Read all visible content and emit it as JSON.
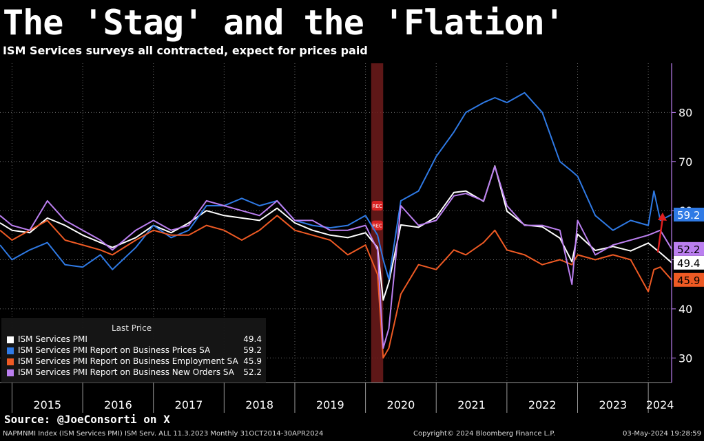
{
  "header": {
    "title": "The 'Stag' and the 'Flation'",
    "subtitle": "ISM Services surveys all contracted, expect for prices paid"
  },
  "legend": {
    "heading": "Last Price",
    "items": [
      {
        "name": "ISM Services PMI",
        "value": "49.4",
        "color": "#ffffff"
      },
      {
        "name": "ISM Services PMI Report on Business Prices SA",
        "value": "59.2",
        "color": "#2f7ae5"
      },
      {
        "name": "ISM Services PMI Report on Business Employment SA",
        "value": "45.9",
        "color": "#ee5a24"
      },
      {
        "name": "ISM Services PMI Report on Business New Orders SA",
        "value": "52.2",
        "color": "#bb7ff0"
      }
    ]
  },
  "recession_marker": "REC",
  "source": "Source: @JoeConsorti on X",
  "footer": {
    "left": "NAPMNMI Index (ISM Services PMI) ISM Serv. ALL 11.3.2023  Monthly 31OCT2014-30APR2024",
    "center": "Copyright© 2024 Bloomberg Finance L.P.",
    "right": "03-May-2024 19:28:59"
  },
  "chart_data": {
    "type": "line",
    "xlabel": "",
    "ylabel": "",
    "x_range": [
      2014.83,
      2024.33
    ],
    "ylim": [
      25,
      90
    ],
    "y_ticks": [
      30,
      40,
      50,
      60,
      70,
      80
    ],
    "x_ticks": [
      "2015",
      "2016",
      "2017",
      "2018",
      "2019",
      "2020",
      "2021",
      "2022",
      "2023",
      "2024"
    ],
    "recession": [
      2020.08,
      2020.25
    ],
    "grid": true,
    "legend_position": "bottom-left",
    "series": [
      {
        "name": "ISM Services PMI",
        "last": "49.4",
        "color": "#ffffff",
        "points": [
          [
            2014.83,
            57.5
          ],
          [
            2015.0,
            56.0
          ],
          [
            2015.25,
            55.5
          ],
          [
            2015.5,
            58.5
          ],
          [
            2015.75,
            57.0
          ],
          [
            2016.0,
            55.0
          ],
          [
            2016.25,
            53.5
          ],
          [
            2016.42,
            52.5
          ],
          [
            2016.75,
            54.5
          ],
          [
            2017.0,
            57.0
          ],
          [
            2017.25,
            55.5
          ],
          [
            2017.5,
            57.5
          ],
          [
            2017.75,
            60.0
          ],
          [
            2018.0,
            59.0
          ],
          [
            2018.25,
            58.5
          ],
          [
            2018.5,
            58.0
          ],
          [
            2018.75,
            60.5
          ],
          [
            2019.0,
            57.5
          ],
          [
            2019.25,
            56.0
          ],
          [
            2019.5,
            55.0
          ],
          [
            2019.75,
            54.5
          ],
          [
            2020.0,
            55.5
          ],
          [
            2020.17,
            52.5
          ],
          [
            2020.25,
            41.8
          ],
          [
            2020.33,
            45.4
          ],
          [
            2020.5,
            57.1
          ],
          [
            2020.75,
            56.6
          ],
          [
            2021.0,
            58.7
          ],
          [
            2021.25,
            63.7
          ],
          [
            2021.42,
            64.0
          ],
          [
            2021.67,
            61.9
          ],
          [
            2021.83,
            69.1
          ],
          [
            2022.0,
            59.9
          ],
          [
            2022.25,
            57.1
          ],
          [
            2022.5,
            56.7
          ],
          [
            2022.75,
            54.4
          ],
          [
            2022.92,
            49.6
          ],
          [
            2023.0,
            55.2
          ],
          [
            2023.25,
            51.9
          ],
          [
            2023.5,
            52.7
          ],
          [
            2023.75,
            51.8
          ],
          [
            2024.0,
            53.4
          ],
          [
            2024.17,
            51.4
          ],
          [
            2024.33,
            49.4
          ]
        ]
      },
      {
        "name": "ISM Services PMI Report on Business Prices SA",
        "last": "59.2",
        "color": "#2f7ae5",
        "points": [
          [
            2014.83,
            53.0
          ],
          [
            2015.0,
            50.0
          ],
          [
            2015.25,
            52.0
          ],
          [
            2015.5,
            53.5
          ],
          [
            2015.75,
            49.0
          ],
          [
            2016.0,
            48.5
          ],
          [
            2016.25,
            51.0
          ],
          [
            2016.42,
            48.0
          ],
          [
            2016.75,
            52.5
          ],
          [
            2017.0,
            57.0
          ],
          [
            2017.25,
            54.5
          ],
          [
            2017.5,
            56.0
          ],
          [
            2017.75,
            61.0
          ],
          [
            2018.0,
            61.0
          ],
          [
            2018.25,
            62.5
          ],
          [
            2018.5,
            61.0
          ],
          [
            2018.75,
            62.0
          ],
          [
            2019.0,
            58.0
          ],
          [
            2019.25,
            57.0
          ],
          [
            2019.5,
            56.5
          ],
          [
            2019.75,
            57.0
          ],
          [
            2020.0,
            59.0
          ],
          [
            2020.17,
            55.0
          ],
          [
            2020.25,
            50.0
          ],
          [
            2020.33,
            46.0
          ],
          [
            2020.5,
            62.0
          ],
          [
            2020.75,
            64.0
          ],
          [
            2021.0,
            71.0
          ],
          [
            2021.25,
            76.0
          ],
          [
            2021.42,
            80.0
          ],
          [
            2021.67,
            82.0
          ],
          [
            2021.83,
            83.0
          ],
          [
            2022.0,
            82.0
          ],
          [
            2022.25,
            84.0
          ],
          [
            2022.5,
            80.0
          ],
          [
            2022.75,
            70.0
          ],
          [
            2022.92,
            68.0
          ],
          [
            2023.0,
            67.0
          ],
          [
            2023.25,
            59.0
          ],
          [
            2023.5,
            56.0
          ],
          [
            2023.75,
            58.0
          ],
          [
            2024.0,
            57.0
          ],
          [
            2024.08,
            64.0
          ],
          [
            2024.17,
            58.0
          ],
          [
            2024.33,
            59.2
          ]
        ]
      },
      {
        "name": "ISM Services PMI Report on Business Employment SA",
        "last": "45.9",
        "color": "#ee5a24",
        "points": [
          [
            2014.83,
            56.0
          ],
          [
            2015.0,
            54.0
          ],
          [
            2015.25,
            56.0
          ],
          [
            2015.5,
            58.0
          ],
          [
            2015.75,
            54.0
          ],
          [
            2016.0,
            53.0
          ],
          [
            2016.25,
            52.0
          ],
          [
            2016.42,
            51.0
          ],
          [
            2016.75,
            54.0
          ],
          [
            2017.0,
            56.0
          ],
          [
            2017.25,
            55.0
          ],
          [
            2017.5,
            55.0
          ],
          [
            2017.75,
            57.0
          ],
          [
            2018.0,
            56.0
          ],
          [
            2018.25,
            54.0
          ],
          [
            2018.5,
            56.0
          ],
          [
            2018.75,
            59.0
          ],
          [
            2019.0,
            56.0
          ],
          [
            2019.25,
            55.0
          ],
          [
            2019.5,
            54.0
          ],
          [
            2019.75,
            51.0
          ],
          [
            2020.0,
            53.0
          ],
          [
            2020.17,
            47.0
          ],
          [
            2020.25,
            30.0
          ],
          [
            2020.33,
            32.0
          ],
          [
            2020.5,
            43.0
          ],
          [
            2020.75,
            49.0
          ],
          [
            2021.0,
            48.0
          ],
          [
            2021.25,
            52.0
          ],
          [
            2021.42,
            51.0
          ],
          [
            2021.67,
            53.5
          ],
          [
            2021.83,
            56.0
          ],
          [
            2022.0,
            52.0
          ],
          [
            2022.25,
            51.0
          ],
          [
            2022.5,
            49.0
          ],
          [
            2022.75,
            50.0
          ],
          [
            2022.92,
            49.0
          ],
          [
            2023.0,
            51.0
          ],
          [
            2023.25,
            50.0
          ],
          [
            2023.5,
            51.0
          ],
          [
            2023.75,
            50.0
          ],
          [
            2024.0,
            43.5
          ],
          [
            2024.08,
            48.0
          ],
          [
            2024.17,
            48.5
          ],
          [
            2024.33,
            45.9
          ]
        ]
      },
      {
        "name": "ISM Services PMI Report on Business New Orders SA",
        "last": "52.2",
        "color": "#bb7ff0",
        "points": [
          [
            2014.83,
            59.0
          ],
          [
            2015.0,
            57.0
          ],
          [
            2015.25,
            56.0
          ],
          [
            2015.5,
            62.0
          ],
          [
            2015.75,
            58.0
          ],
          [
            2016.0,
            56.0
          ],
          [
            2016.25,
            54.0
          ],
          [
            2016.42,
            52.0
          ],
          [
            2016.75,
            56.0
          ],
          [
            2017.0,
            58.0
          ],
          [
            2017.25,
            56.0
          ],
          [
            2017.5,
            57.0
          ],
          [
            2017.75,
            62.0
          ],
          [
            2018.0,
            61.0
          ],
          [
            2018.25,
            60.0
          ],
          [
            2018.5,
            59.0
          ],
          [
            2018.75,
            62.0
          ],
          [
            2019.0,
            58.0
          ],
          [
            2019.25,
            58.0
          ],
          [
            2019.5,
            56.0
          ],
          [
            2019.75,
            56.0
          ],
          [
            2020.0,
            57.0
          ],
          [
            2020.17,
            52.0
          ],
          [
            2020.25,
            32.0
          ],
          [
            2020.33,
            36.0
          ],
          [
            2020.5,
            61.0
          ],
          [
            2020.75,
            57.0
          ],
          [
            2021.0,
            58.0
          ],
          [
            2021.25,
            63.0
          ],
          [
            2021.42,
            63.5
          ],
          [
            2021.67,
            62.0
          ],
          [
            2021.83,
            69.0
          ],
          [
            2022.0,
            61.0
          ],
          [
            2022.25,
            57.0
          ],
          [
            2022.5,
            57.0
          ],
          [
            2022.75,
            56.0
          ],
          [
            2022.92,
            45.0
          ],
          [
            2023.0,
            58.0
          ],
          [
            2023.25,
            51.0
          ],
          [
            2023.5,
            53.0
          ],
          [
            2023.75,
            54.0
          ],
          [
            2024.0,
            55.0
          ],
          [
            2024.17,
            56.0
          ],
          [
            2024.33,
            52.2
          ]
        ]
      }
    ]
  }
}
